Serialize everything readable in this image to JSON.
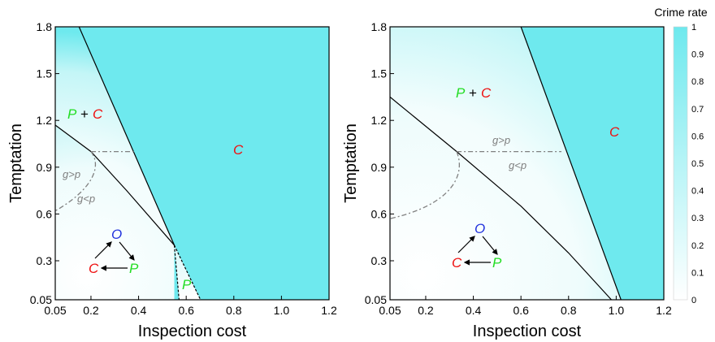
{
  "colors": {
    "cyan": "#6ee9ee",
    "white": "#ffffff",
    "green": "#22dd22",
    "red": "#ee1111",
    "blue": "#2233dd",
    "gray": "#808080"
  },
  "colorbar": {
    "title": "Crime rate",
    "ticks": [
      "1",
      "0.9",
      "0.8",
      "0.7",
      "0.6",
      "0.5",
      "0.4",
      "0.3",
      "0.2",
      "0.1",
      "0"
    ]
  },
  "chart_data": [
    {
      "type": "heatmap",
      "xlabel": "Inspection cost",
      "ylabel": "Temptation",
      "xlim": [
        0.05,
        1.2
      ],
      "ylim": [
        0.05,
        1.8
      ],
      "xticks": [
        "0.05",
        "0.2",
        "0.4",
        "0.6",
        "0.8",
        "1.0",
        "1.2"
      ],
      "yticks": [
        "1.8",
        "1.5",
        "1.2",
        "0.9",
        "0.6",
        "0.3",
        "0.05"
      ],
      "boundaries": {
        "pc_to_c": [
          [
            0.15,
            1.8
          ],
          [
            0.55,
            0.4
          ]
        ],
        "mixed_to_pc": [
          [
            0.05,
            1.17
          ],
          [
            0.2,
            1.0
          ],
          [
            0.35,
            0.75
          ],
          [
            0.55,
            0.4
          ]
        ],
        "p_region_left": [
          [
            0.55,
            0.4
          ],
          [
            0.57,
            0.05
          ]
        ],
        "p_region_right": [
          [
            0.55,
            0.4
          ],
          [
            0.66,
            0.05
          ]
        ],
        "g_eq_p_horizontal": [
          [
            0.2,
            1.0
          ],
          [
            0.38,
            1.0
          ]
        ],
        "g_eq_p_curve": [
          [
            0.2,
            1.0
          ],
          [
            0.25,
            0.9
          ],
          [
            0.2,
            0.75
          ],
          [
            0.05,
            0.62
          ]
        ]
      },
      "labels": {
        "pc_p": "P",
        "pc_plus": "+",
        "pc_c": "C",
        "c_region": "C",
        "p_region": "P",
        "g_gt_p": "g>p",
        "g_lt_p": "g<p",
        "cycle_o": "O",
        "cycle_c": "C",
        "cycle_p": "P"
      }
    },
    {
      "type": "heatmap",
      "xlabel": "Inspection cost",
      "ylabel": "Temptation",
      "xlim": [
        0.05,
        1.2
      ],
      "ylim": [
        0.05,
        1.8
      ],
      "xticks": [
        "0.05",
        "0.2",
        "0.4",
        "0.6",
        "0.8",
        "1.0",
        "1.2"
      ],
      "yticks": [
        "1.8",
        "1.5",
        "1.2",
        "0.9",
        "0.6",
        "0.3",
        "0.05"
      ],
      "boundaries": {
        "pc_to_c": [
          [
            0.6,
            1.8
          ],
          [
            1.02,
            0.05
          ]
        ],
        "mixed_to_pc": [
          [
            0.05,
            1.35
          ],
          [
            0.33,
            1.0
          ],
          [
            0.6,
            0.65
          ],
          [
            0.8,
            0.35
          ],
          [
            0.98,
            0.05
          ]
        ],
        "g_eq_p_horizontal": [
          [
            0.33,
            1.0
          ],
          [
            0.77,
            1.0
          ]
        ],
        "g_eq_p_curve": [
          [
            0.33,
            1.0
          ],
          [
            0.37,
            0.85
          ],
          [
            0.31,
            0.66
          ],
          [
            0.05,
            0.57
          ]
        ]
      },
      "labels": {
        "pc_p": "P",
        "pc_plus": "+",
        "pc_c": "C",
        "c_region": "C",
        "g_gt_p": "g>p",
        "g_lt_p": "g<p",
        "cycle_o": "O",
        "cycle_c": "C",
        "cycle_p": "P"
      }
    }
  ]
}
